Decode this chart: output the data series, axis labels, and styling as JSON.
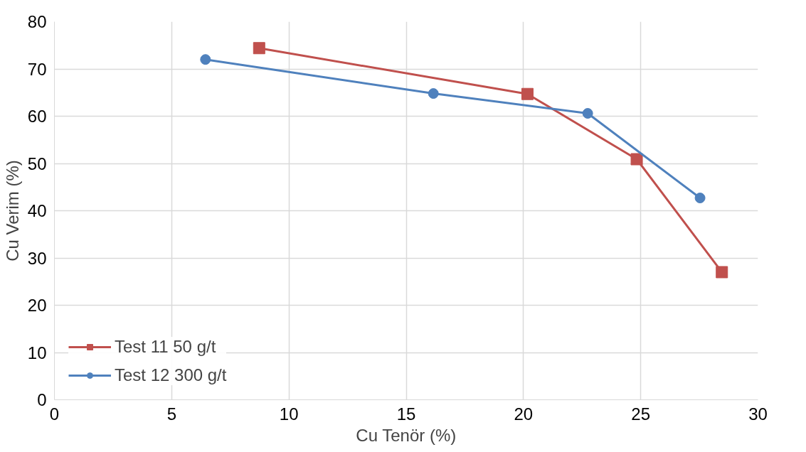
{
  "chart_data": {
    "type": "line",
    "xlabel": "Cu Tenör (%)",
    "ylabel": "Cu Verim (%)",
    "series": [
      {
        "name": "Test 11 50 g/t",
        "color": "#c0504d",
        "marker": "square",
        "x": [
          8.73,
          20.17,
          24.83,
          28.46
        ],
        "values": [
          74.4,
          64.7,
          50.9,
          27.0
        ]
      },
      {
        "name": "Test 12 300 g/t",
        "color": "#4f81bd",
        "marker": "circle",
        "x": [
          6.44,
          16.16,
          22.74,
          27.53
        ],
        "values": [
          72.0,
          64.8,
          60.6,
          42.7
        ]
      }
    ],
    "xlim": [
      0,
      30
    ],
    "xticks": [
      0,
      5,
      10,
      15,
      20,
      25,
      30
    ],
    "ylim": [
      0,
      80
    ],
    "yticks": [
      0,
      10,
      20,
      30,
      40,
      50,
      60,
      70,
      80
    ],
    "grid": true,
    "legend": "bottom left",
    "line_style": "solid"
  }
}
